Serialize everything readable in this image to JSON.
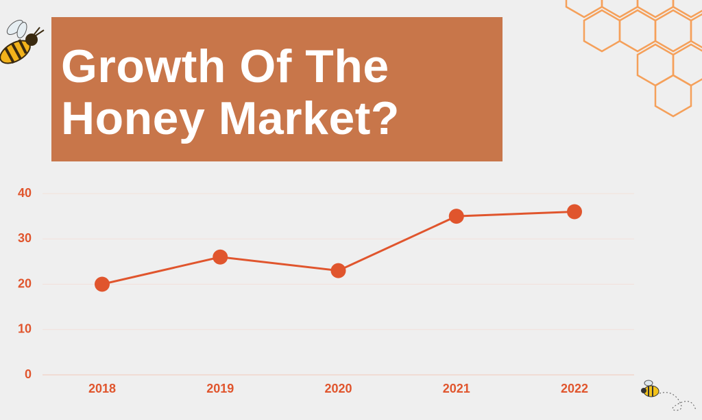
{
  "chart_data": {
    "type": "line",
    "title": "Growth Of The Honey Market?",
    "categories": [
      "2018",
      "2019",
      "2020",
      "2021",
      "2022"
    ],
    "values": [
      20,
      26,
      23,
      35,
      36
    ],
    "color": "#e0552d",
    "ylim": [
      0,
      40
    ],
    "yticks": [
      0,
      10,
      20,
      30,
      40
    ],
    "grid": true
  }
}
